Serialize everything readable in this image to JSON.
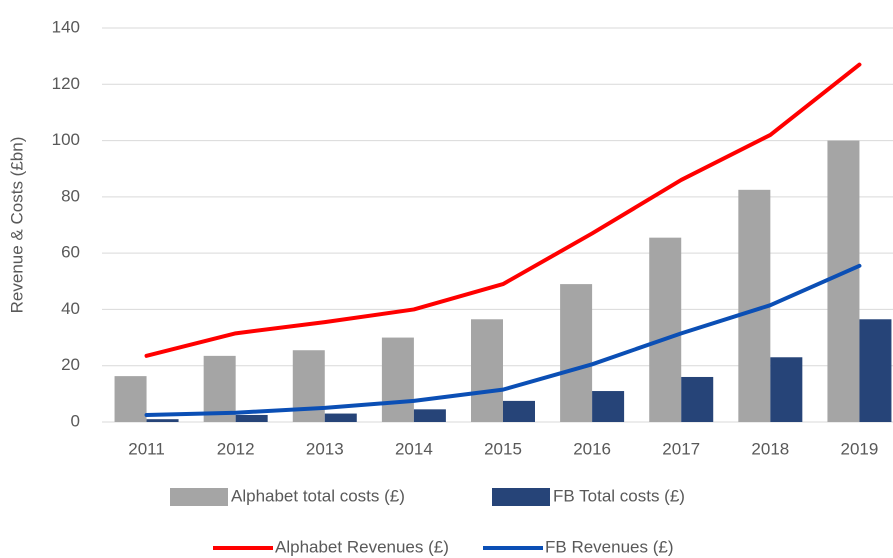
{
  "chart_data": {
    "type": "combo",
    "ylabel": "Revenue & Costs (£bn)",
    "categories": [
      "2011",
      "2012",
      "2013",
      "2014",
      "2015",
      "2016",
      "2017",
      "2018",
      "2019"
    ],
    "series": [
      {
        "name": "Alphabet total costs (£)",
        "type": "bar",
        "color": "#a5a5a5",
        "values": [
          16.3,
          23.5,
          25.5,
          30,
          36.5,
          49,
          65.5,
          82.5,
          100
        ]
      },
      {
        "name": "FB Total costs (£)",
        "type": "bar",
        "color": "#264478",
        "values": [
          1,
          2.5,
          3,
          4.5,
          7.5,
          11,
          16,
          23,
          36.5
        ]
      },
      {
        "name": "Alphabet Revenues (£)",
        "type": "line",
        "color": "#ff0000",
        "values": [
          23.5,
          31.5,
          35.5,
          40,
          49,
          67,
          86,
          102,
          127
        ]
      },
      {
        "name": "FB Revenues (£)",
        "type": "line",
        "color": "#0b4fb5",
        "values": [
          2.5,
          3.3,
          5,
          7.5,
          11.5,
          20.5,
          31.5,
          41.5,
          55.5
        ]
      }
    ],
    "ylim": [
      0,
      140
    ],
    "yticks": [
      0,
      20,
      40,
      60,
      80,
      100,
      120,
      140
    ],
    "grid": true
  }
}
